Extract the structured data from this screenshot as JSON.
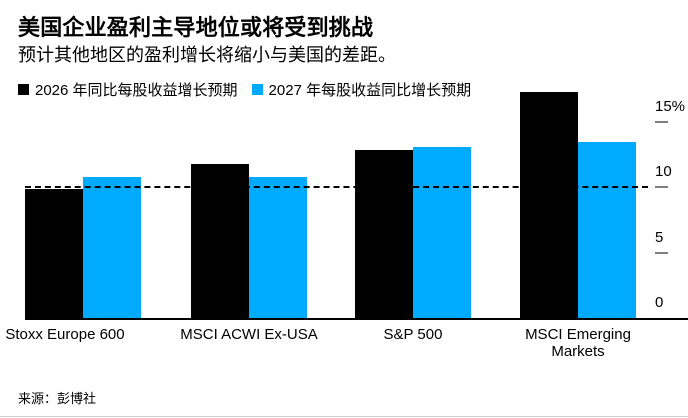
{
  "header": {
    "title": "美国企业盈利主导地位或将受到挑战",
    "subtitle": "预计其他地区的盈利增长将缩小与美国的差距。"
  },
  "chart_data": {
    "type": "bar",
    "title": "美国企业盈利主导地位或将受到挑战",
    "subtitle": "预计其他地区的盈利增长将缩小与美国的差距。",
    "categories": [
      "Stoxx Europe 600",
      "MSCI ACWI Ex-USA",
      "S&P 500",
      "MSCI Emerging Markets"
    ],
    "series": [
      {
        "name": "2026 年同比每股收益增长预期",
        "color": "#000000",
        "values": [
          9.9,
          11.8,
          12.9,
          17.3
        ]
      },
      {
        "name": "2027 年每股收益同比增长预期",
        "color": "#00aaff",
        "values": [
          10.8,
          10.8,
          13.1,
          13.5
        ]
      }
    ],
    "unit": "%",
    "ylim": [
      0,
      17.5
    ],
    "yticks": [
      {
        "label": "15%",
        "value": 15
      },
      {
        "label": "10",
        "value": 10
      },
      {
        "label": "5",
        "value": 5
      },
      {
        "label": "0",
        "value": 0
      }
    ],
    "reference_line": {
      "value": 10,
      "style": "dashed",
      "color": "#000000"
    },
    "legend_position": "top-left",
    "y_axis_side": "right",
    "grid": false
  },
  "colors": {
    "background": "#ffffff",
    "bar_2026": "#000000",
    "bar_2027": "#00aaff",
    "tick_mark": "#7f7f7f",
    "axis_line": "#000000"
  },
  "source": {
    "label": "来源：彭博社"
  }
}
